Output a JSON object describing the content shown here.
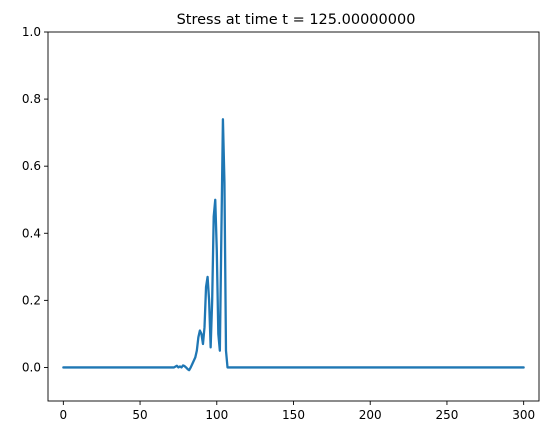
{
  "chart_data": {
    "type": "line",
    "title": "Stress at time t =   125.00000000",
    "xlabel": "",
    "ylabel": "",
    "xlim": [
      -10,
      310
    ],
    "ylim": [
      -0.1,
      1.0
    ],
    "x_ticks": [
      0,
      50,
      100,
      150,
      200,
      250,
      300
    ],
    "x_tick_labels": [
      "0",
      "50",
      "100",
      "150",
      "200",
      "250",
      "300"
    ],
    "y_ticks": [
      0.0,
      0.2,
      0.4,
      0.6,
      0.8,
      1.0
    ],
    "y_tick_labels": [
      "0.0",
      "0.2",
      "0.4",
      "0.6",
      "0.8",
      "1.0"
    ],
    "grid": false,
    "line_color": "#1f77b4",
    "series": [
      {
        "x": [
          0,
          10,
          20,
          30,
          40,
          50,
          60,
          70,
          72,
          74,
          75,
          76,
          77,
          78,
          79,
          80,
          81,
          82,
          83,
          84,
          85,
          86,
          87,
          88,
          89,
          90,
          91,
          92,
          93,
          94,
          95,
          96,
          97,
          98,
          99,
          100,
          101,
          102,
          103,
          104,
          105,
          106,
          107,
          108,
          110,
          120,
          150,
          200,
          250,
          300
        ],
        "y": [
          0.0,
          0.0,
          0.0,
          0.0,
          0.0,
          0.0,
          0.0,
          0.0,
          0.0,
          0.005,
          0.0,
          0.003,
          0.0,
          0.006,
          0.004,
          0.0,
          -0.005,
          -0.008,
          0.0,
          0.01,
          0.02,
          0.03,
          0.05,
          0.09,
          0.11,
          0.1,
          0.07,
          0.12,
          0.24,
          0.27,
          0.2,
          0.06,
          0.2,
          0.45,
          0.5,
          0.35,
          0.1,
          0.05,
          0.4,
          0.74,
          0.55,
          0.05,
          0.0,
          0.0,
          0.0,
          0.0,
          0.0,
          0.0,
          0.0,
          0.0
        ]
      }
    ]
  }
}
